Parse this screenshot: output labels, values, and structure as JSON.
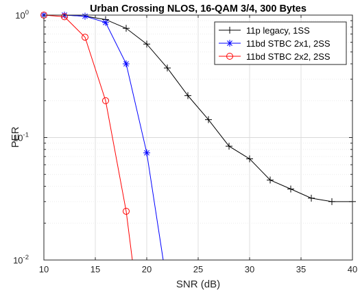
{
  "chart_data": {
    "type": "line",
    "title": "Urban Crossing NLOS, 16-QAM 3/4, 300 Bytes",
    "xlabel": "SNR (dB)",
    "ylabel": "PER",
    "xlim": [
      10,
      40
    ],
    "ylim": [
      0.01,
      1
    ],
    "yscale": "log",
    "grid": true,
    "legend_position": "top-right",
    "x_ticks": [
      "10",
      "15",
      "20",
      "25",
      "30",
      "35",
      "40"
    ],
    "y_ticks": [
      {
        "value": 1,
        "base": "10",
        "exp": "0"
      },
      {
        "value": 0.1,
        "base": "10",
        "exp": "-1"
      },
      {
        "value": 0.01,
        "base": "10",
        "exp": "-2"
      }
    ],
    "series": [
      {
        "name": "11p legacy, 1SS",
        "color": "#000000",
        "marker": "plus",
        "x": [
          10,
          12,
          14,
          16,
          18,
          20,
          22,
          24,
          26,
          28,
          30,
          32,
          34,
          36,
          38,
          40
        ],
        "y": [
          1.0,
          1.0,
          0.98,
          0.92,
          0.78,
          0.58,
          0.37,
          0.22,
          0.14,
          0.085,
          0.067,
          0.045,
          0.038,
          0.032,
          0.03,
          0.03
        ]
      },
      {
        "name": "11bd STBC 2x1, 2SS",
        "color": "#0000ff",
        "marker": "star",
        "x": [
          10,
          12,
          14,
          16,
          18,
          20,
          21.6
        ],
        "y": [
          1.0,
          1.0,
          0.98,
          0.87,
          0.4,
          0.075,
          0.01
        ]
      },
      {
        "name": "11bd STBC 2x2, 2SS",
        "color": "#ff0000",
        "marker": "circle",
        "x": [
          10,
          12,
          14,
          16,
          18,
          18.6
        ],
        "y": [
          1.0,
          0.97,
          0.66,
          0.2,
          0.025,
          0.01
        ]
      }
    ]
  }
}
